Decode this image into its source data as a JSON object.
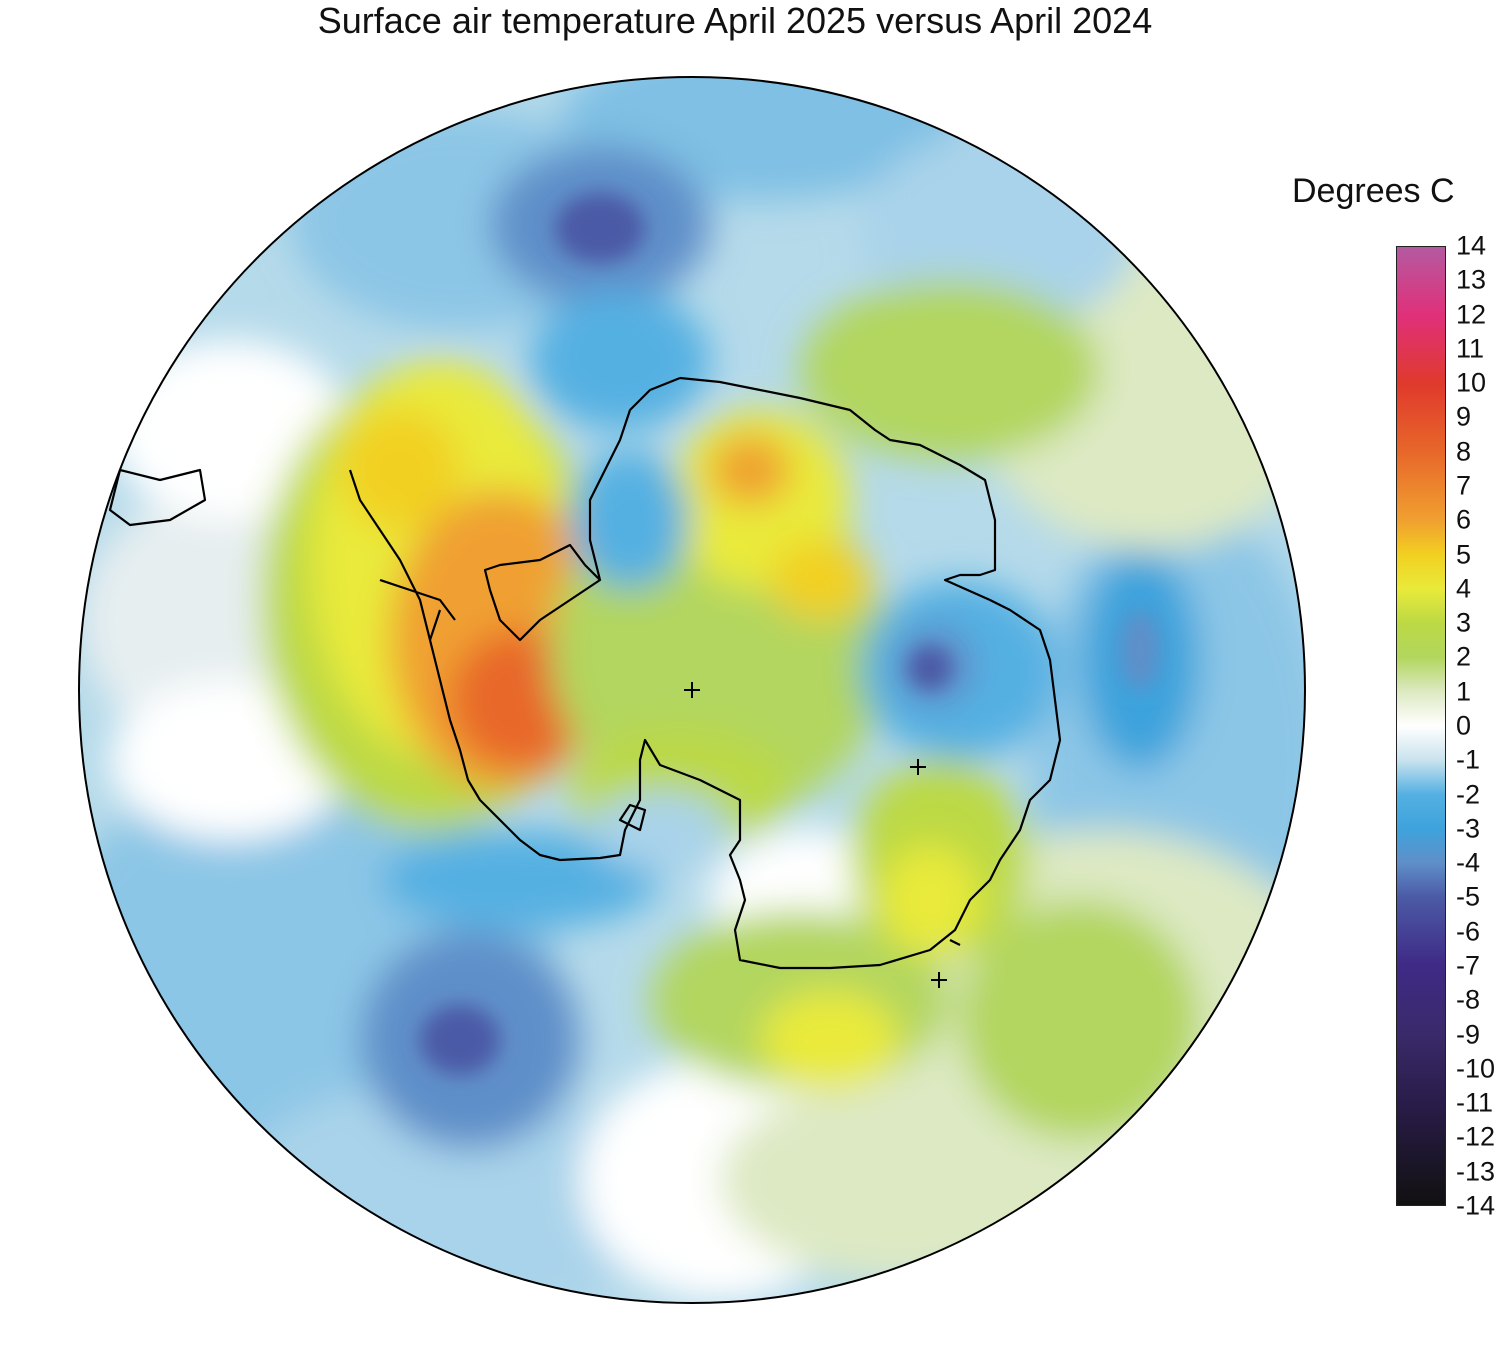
{
  "title": "Surface air temperature April 2025 versus April 2024",
  "legend": {
    "title": "Degrees C",
    "ticks": [
      "14",
      "13",
      "12",
      "11",
      "10",
      "9",
      "8",
      "7",
      "6",
      "5",
      "4",
      "3",
      "2",
      "1",
      "0",
      "-1",
      "-2",
      "-3",
      "-4",
      "-5",
      "-6",
      "-7",
      "-8",
      "-9",
      "-10",
      "-11",
      "-12",
      "-13",
      "-14"
    ],
    "min": -14,
    "max": 14,
    "colors": {
      "14": "#b45aa0",
      "12": "#e0307a",
      "10": "#e03a2c",
      "8": "#e8672a",
      "6": "#f0a030",
      "5": "#f2d020",
      "4": "#e9ea3a",
      "3": "#bcd944",
      "2": "#b2d65e",
      "1": "#dde9c3",
      "0": "#ffffff",
      "-1": "#c9e3ee",
      "-2": "#54b0e2",
      "-3": "#3ea3dc",
      "-4": "#5f8fc9",
      "-5": "#4c5aa6",
      "-7": "#3f2a86",
      "-9": "#3a2a6a",
      "-11": "#2a1c4a",
      "-14": "#111111"
    }
  },
  "map": {
    "projection": "south polar stereographic",
    "region": "Antarctica and Southern Ocean",
    "coastline_color": "#000000"
  }
}
